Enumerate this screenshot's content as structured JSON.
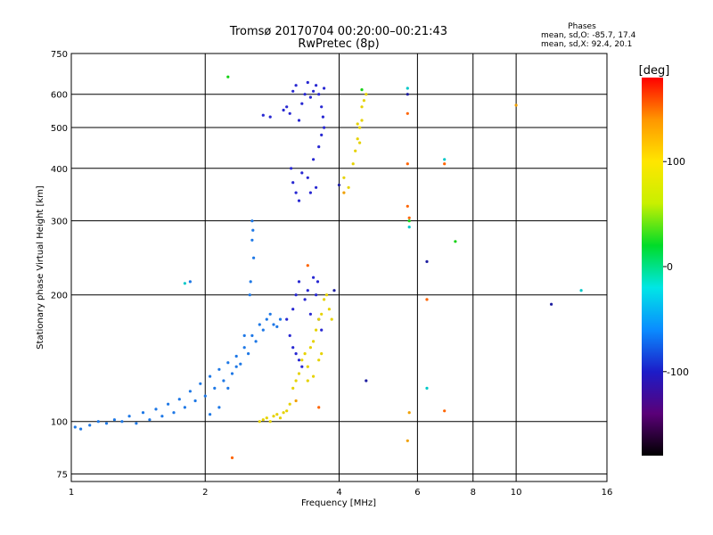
{
  "chart_data": {
    "type": "scatter",
    "title": "Tromsø 20170704 00:20:00–00:21:43",
    "subtitle": "RwPretec (8p)",
    "xlabel": "Frequency [MHz]",
    "ylabel": "Stationary phase Virtual Height [km]",
    "x_scale": "log",
    "y_scale": "log",
    "xlim": [
      1,
      16
    ],
    "ylim": [
      72,
      750
    ],
    "x_ticks": [
      1,
      2,
      4,
      6,
      8,
      10,
      16
    ],
    "y_ticks": [
      75,
      100,
      200,
      300,
      400,
      500,
      600,
      750
    ],
    "grid": true,
    "stats": {
      "header": "Phases",
      "o_line": "mean, sd,O: -85.7, 17.4",
      "x_line": "mean, sd,X:  92.4, 20.1"
    },
    "colorbar": {
      "label": "[deg]",
      "range": [
        -180,
        180
      ],
      "ticks": [
        100,
        0,
        -100
      ],
      "colors": [
        "#000000",
        "#5a0078",
        "#1c1cc8",
        "#0a8cff",
        "#00e6e6",
        "#00dc28",
        "#c8f000",
        "#ffe600",
        "#ff9600",
        "#ff0000"
      ]
    },
    "series": [
      {
        "color": "#1e78e6",
        "points": [
          [
            1.02,
            97
          ],
          [
            1.05,
            96
          ],
          [
            1.1,
            98
          ],
          [
            1.15,
            100
          ],
          [
            1.2,
            99
          ],
          [
            1.25,
            101
          ],
          [
            1.3,
            100
          ],
          [
            1.35,
            103
          ],
          [
            1.4,
            99
          ],
          [
            1.45,
            105
          ],
          [
            1.5,
            101
          ],
          [
            1.55,
            107
          ],
          [
            1.6,
            103
          ],
          [
            1.65,
            110
          ],
          [
            1.7,
            105
          ],
          [
            1.75,
            113
          ],
          [
            1.8,
            108
          ],
          [
            1.85,
            118
          ],
          [
            1.9,
            112
          ],
          [
            1.95,
            123
          ],
          [
            2.0,
            115
          ],
          [
            2.05,
            128
          ],
          [
            2.1,
            120
          ],
          [
            2.15,
            133
          ],
          [
            2.2,
            125
          ],
          [
            2.25,
            138
          ],
          [
            2.3,
            130
          ],
          [
            2.35,
            143
          ],
          [
            2.4,
            137
          ],
          [
            2.45,
            150
          ],
          [
            2.5,
            145
          ],
          [
            2.55,
            160
          ],
          [
            2.6,
            155
          ],
          [
            2.65,
            170
          ],
          [
            2.7,
            165
          ],
          [
            2.75,
            175
          ],
          [
            2.8,
            180
          ],
          [
            2.85,
            170
          ],
          [
            2.9,
            168
          ],
          [
            2.95,
            175
          ],
          [
            2.55,
            300
          ],
          [
            2.56,
            285
          ],
          [
            2.55,
            270
          ],
          [
            2.57,
            245
          ],
          [
            2.53,
            215
          ],
          [
            2.52,
            200
          ],
          [
            1.85,
            215
          ],
          [
            2.45,
            160
          ],
          [
            2.35,
            135
          ],
          [
            2.25,
            120
          ],
          [
            2.15,
            108
          ],
          [
            2.05,
            104
          ]
        ]
      },
      {
        "color": "#2828d2",
        "points": [
          [
            3.0,
            550
          ],
          [
            3.05,
            560
          ],
          [
            3.1,
            540
          ],
          [
            3.15,
            610
          ],
          [
            3.2,
            630
          ],
          [
            3.25,
            520
          ],
          [
            3.3,
            570
          ],
          [
            3.35,
            600
          ],
          [
            3.4,
            640
          ],
          [
            3.45,
            590
          ],
          [
            3.5,
            610
          ],
          [
            3.55,
            630
          ],
          [
            3.6,
            600
          ],
          [
            3.65,
            560
          ],
          [
            3.7,
            620
          ],
          [
            3.12,
            400
          ],
          [
            3.15,
            370
          ],
          [
            3.2,
            350
          ],
          [
            3.25,
            335
          ],
          [
            3.3,
            390
          ],
          [
            3.4,
            380
          ],
          [
            3.5,
            420
          ],
          [
            3.6,
            450
          ],
          [
            3.65,
            480
          ],
          [
            3.7,
            500
          ],
          [
            3.68,
            530
          ],
          [
            3.55,
            360
          ],
          [
            3.45,
            350
          ],
          [
            3.05,
            175
          ],
          [
            3.1,
            160
          ],
          [
            3.15,
            150
          ],
          [
            3.2,
            145
          ],
          [
            3.25,
            140
          ],
          [
            3.3,
            135
          ],
          [
            3.15,
            185
          ],
          [
            3.2,
            200
          ],
          [
            3.25,
            215
          ],
          [
            3.35,
            195
          ],
          [
            3.4,
            205
          ],
          [
            3.45,
            180
          ],
          [
            3.5,
            220
          ],
          [
            3.55,
            200
          ],
          [
            3.58,
            215
          ],
          [
            3.6,
            175
          ],
          [
            3.65,
            165
          ],
          [
            2.7,
            535
          ],
          [
            2.8,
            530
          ]
        ]
      },
      {
        "color": "#e6d200",
        "points": [
          [
            2.65,
            100
          ],
          [
            2.7,
            101
          ],
          [
            2.75,
            102
          ],
          [
            2.8,
            100
          ],
          [
            2.85,
            103
          ],
          [
            2.9,
            104
          ],
          [
            2.95,
            102
          ],
          [
            3.0,
            105
          ],
          [
            3.05,
            106
          ],
          [
            3.1,
            110
          ],
          [
            3.15,
            120
          ],
          [
            3.2,
            125
          ],
          [
            3.25,
            130
          ],
          [
            3.3,
            140
          ],
          [
            3.35,
            145
          ],
          [
            3.4,
            135
          ],
          [
            3.45,
            150
          ],
          [
            3.5,
            155
          ],
          [
            3.55,
            165
          ],
          [
            3.6,
            175
          ],
          [
            3.65,
            180
          ],
          [
            3.7,
            195
          ],
          [
            3.75,
            200
          ],
          [
            3.8,
            185
          ],
          [
            3.85,
            175
          ],
          [
            3.6,
            140
          ],
          [
            3.65,
            145
          ],
          [
            3.5,
            128
          ],
          [
            3.4,
            125
          ],
          [
            4.1,
            380
          ],
          [
            4.2,
            360
          ],
          [
            4.3,
            410
          ],
          [
            4.35,
            440
          ],
          [
            4.4,
            470
          ],
          [
            4.45,
            500
          ],
          [
            4.5,
            520
          ],
          [
            4.5,
            560
          ],
          [
            4.55,
            580
          ],
          [
            4.6,
            600
          ],
          [
            4.4,
            510
          ],
          [
            4.45,
            460
          ]
        ]
      },
      {
        "color": "#ff6400",
        "points": [
          [
            2.3,
            82
          ],
          [
            3.4,
            235
          ],
          [
            3.6,
            108
          ],
          [
            5.7,
            540
          ],
          [
            5.7,
            410
          ],
          [
            5.75,
            305
          ],
          [
            5.7,
            325
          ],
          [
            6.3,
            195
          ],
          [
            6.9,
            106
          ],
          [
            6.9,
            410
          ]
        ]
      },
      {
        "color": "#00c8c8",
        "points": [
          [
            5.7,
            620
          ],
          [
            5.75,
            290
          ],
          [
            6.3,
            120
          ],
          [
            6.9,
            420
          ],
          [
            14.0,
            205
          ],
          [
            1.8,
            213
          ]
        ]
      },
      {
        "color": "#14d214",
        "points": [
          [
            2.25,
            660
          ],
          [
            4.5,
            615
          ],
          [
            7.3,
            268
          ],
          [
            5.75,
            300
          ]
        ]
      },
      {
        "color": "#1e1ea0",
        "points": [
          [
            4.0,
            365
          ],
          [
            4.6,
            125
          ],
          [
            6.3,
            240
          ],
          [
            12.0,
            190
          ],
          [
            5.7,
            600
          ],
          [
            3.9,
            205
          ]
        ]
      },
      {
        "color": "#f0a000",
        "points": [
          [
            5.7,
            90
          ],
          [
            5.75,
            105
          ],
          [
            10.0,
            565
          ],
          [
            3.2,
            112
          ],
          [
            4.1,
            350
          ]
        ]
      }
    ]
  }
}
